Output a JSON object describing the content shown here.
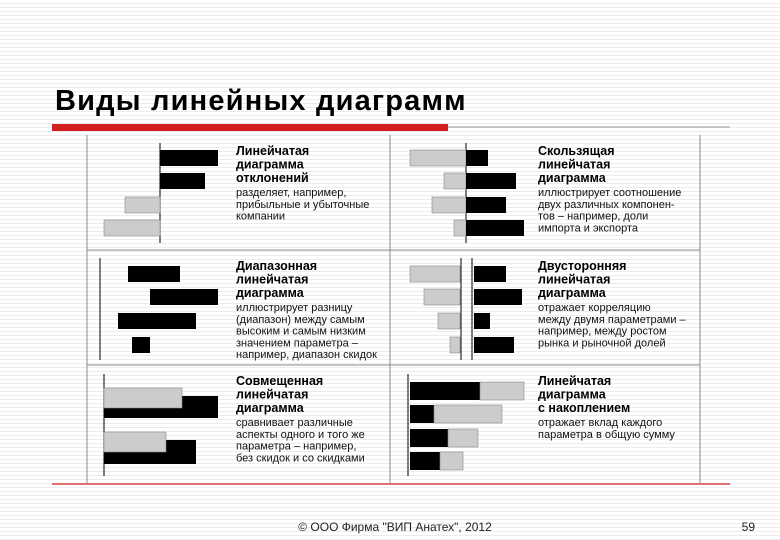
{
  "title": "Виды линейных диаграмм",
  "panels": [
    {
      "heading": [
        "Линейчатая",
        "диаграмма",
        "отклонений"
      ],
      "description": [
        "разделяет, например,",
        "прибыльные и убыточные",
        "компании"
      ]
    },
    {
      "heading": [
        "Скользящая",
        "линейчатая",
        "диаграмма"
      ],
      "description": [
        "иллюстрирует соотношение",
        "двух различных компонен-",
        "тов – например, доли",
        "импорта и экспорта"
      ]
    },
    {
      "heading": [
        "Диапазонная",
        "линейчатая",
        "диаграмма"
      ],
      "description": [
        "иллюстрирует разницу",
        "(диапазон) между самым",
        "высоким и самым низким",
        "значением параметра –",
        "например, диапазон скидок"
      ]
    },
    {
      "heading": [
        "Двусторонняя",
        "линейчатая",
        "диаграмма"
      ],
      "description": [
        "отражает корреляцию",
        "между двумя параметрами –",
        "например, между ростом",
        "рынка и рыночной долей"
      ]
    },
    {
      "heading": [
        "Совмещенная",
        "линейчатая",
        "диаграмма"
      ],
      "description": [
        "сравнивает различные",
        "аспекты одного и того же",
        "параметра – например,",
        "без скидок и со скидками"
      ]
    },
    {
      "heading": [
        "Линейчатая",
        "диаграмма",
        "с накоплением"
      ],
      "description": [
        "отражает вклад каждого",
        "параметра в общую сумму"
      ]
    }
  ],
  "footer": "© ООО Фирма \"ВИП Анатех\", 2012",
  "page_number": "59"
}
